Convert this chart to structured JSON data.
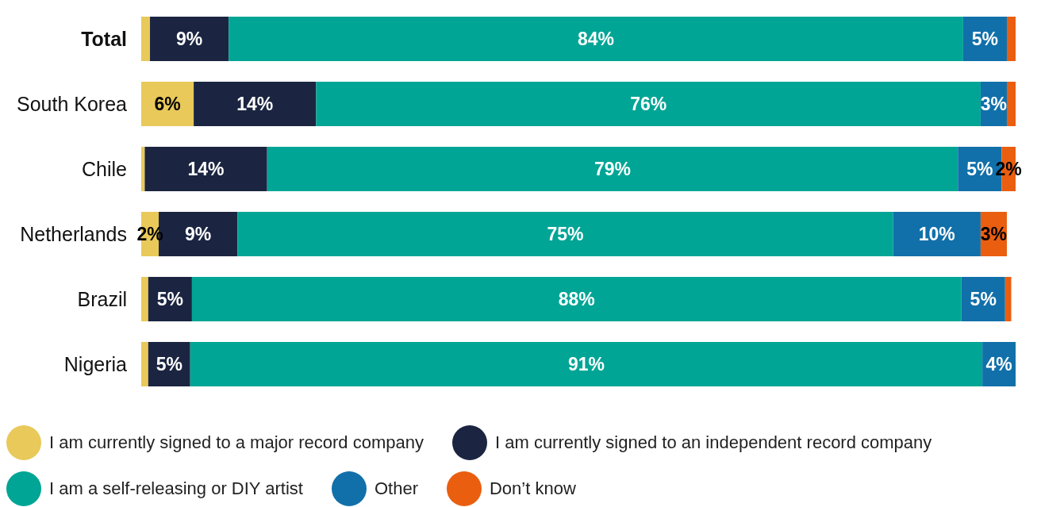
{
  "chart_data": {
    "type": "bar",
    "orientation": "horizontal",
    "stacked": true,
    "categories": [
      "Total",
      "South Korea",
      "Chile",
      "Netherlands",
      "Brazil",
      "Nigeria"
    ],
    "series": [
      {
        "name": "I am currently signed to a major record company",
        "color": "#e8c95a",
        "values": [
          1,
          6,
          0.4,
          2,
          0.8,
          0.8
        ],
        "value_labels": [
          null,
          "6%",
          null,
          "2%",
          null,
          null
        ]
      },
      {
        "name": "I am currently signed to an independent record company",
        "color": "#1b2541",
        "values": [
          9,
          14,
          14,
          9,
          5,
          4.8
        ],
        "value_labels": [
          "9%",
          "14%",
          "14%",
          "9%",
          "5%",
          "5%"
        ]
      },
      {
        "name": "I am a self-releasing or DIY artist",
        "color": "#00a595",
        "values": [
          84,
          76,
          79,
          75,
          88,
          90.6
        ],
        "value_labels": [
          "84%",
          "76%",
          "79%",
          "75%",
          "88%",
          "91%"
        ]
      },
      {
        "name": "Other",
        "color": "#1170aa",
        "values": [
          5,
          3,
          5,
          10,
          5,
          3.8
        ],
        "value_labels": [
          "5%",
          "3%",
          "5%",
          "10%",
          "5%",
          "4%"
        ]
      },
      {
        "name": "Don’t know",
        "color": "#ea5e0f",
        "values": [
          1,
          1,
          2,
          3,
          0.7,
          0
        ],
        "value_labels": [
          null,
          null,
          "2%",
          "3%",
          null,
          null
        ]
      }
    ],
    "xlim": [
      0,
      100
    ],
    "tick_labels": "y",
    "legend": "bottom",
    "grid": false
  }
}
